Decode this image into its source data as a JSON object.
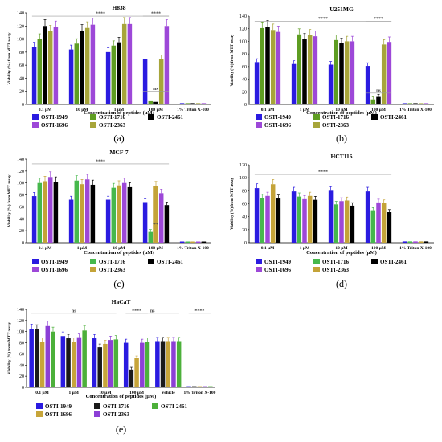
{
  "colors": {
    "OSTI-1949": "#2a1be0",
    "OSTI-1716_a": "#5e9d22",
    "OSTI-2461": "#000000",
    "OSTI-1696": "#9d48d8",
    "OSTI-2363_a": "#a7a53a",
    "OSTI-1716_b": "#46b84c",
    "OSTI-2363_b": "#c4a338",
    "OSTI-1716_e": "#1a1a1a",
    "OSTI-2461_e": "#4cb03a",
    "OSTI-1696_e": "#c7a53a",
    "OSTI-2363_e": "#8c3fd6",
    "grey": "#9a9a9a",
    "red": "#e02020"
  },
  "chart_data": [
    {
      "type": "bar",
      "panel_label": "(a)",
      "title": "H838",
      "xlabel": "Concentration of peptides (µM)",
      "ylabel": "Viability (%) from MTT assay",
      "ylim": [
        0,
        140
      ],
      "yticks": [
        "0",
        "20",
        "40",
        "60",
        "80",
        "100",
        "120",
        "140"
      ],
      "categories": [
        "0.1 µM",
        "10 µM",
        "1 µM",
        "100 µM",
        "1% Triton X-100"
      ],
      "series": [
        {
          "name": "OSTI-1949",
          "color_key": "OSTI-1949",
          "values": [
            88,
            84,
            80,
            70,
            2
          ]
        },
        {
          "name": "OSTI-1716",
          "color_key": "OSTI-1716_a",
          "values": [
            100,
            93,
            90,
            5,
            2
          ]
        },
        {
          "name": "OSTI-2461",
          "color_key": "OSTI-2461",
          "values": [
            120,
            113,
            95,
            4,
            2
          ]
        },
        {
          "name": "OSTI-2363",
          "color_key": "OSTI-2363_a",
          "values": [
            112,
            117,
            123,
            70,
            2
          ]
        },
        {
          "name": "OSTI-1696",
          "color_key": "OSTI-1696",
          "values": [
            118,
            122,
            123,
            120,
            2
          ]
        }
      ],
      "annotations": [
        {
          "text": "****",
          "x_from": 0,
          "x_to": 3,
          "y": 135
        },
        {
          "text": "****",
          "x_from": 3,
          "x_to": 3,
          "y": 135
        },
        {
          "text": "ns",
          "x_from": 3,
          "x_to": 3,
          "y": 20
        }
      ],
      "legend": [
        "OSTI-1949",
        "OSTI-1716",
        "OSTI-2461",
        "OSTI-1696",
        "OSTI-2363"
      ],
      "legend_colors": [
        "OSTI-1949",
        "OSTI-1716_a",
        "OSTI-2461",
        "OSTI-1696",
        "OSTI-2363_a"
      ]
    },
    {
      "type": "bar",
      "panel_label": "(b)",
      "title": "U251MG",
      "xlabel": "Concentration of peptides (µM)",
      "ylabel": "Viability (%) from MTT assay",
      "ylim": [
        0,
        140
      ],
      "yticks": [
        "0",
        "20",
        "40",
        "60",
        "80",
        "100",
        "120",
        "140"
      ],
      "categories": [
        "0.1 µM",
        "1 µM",
        "10 µM",
        "100 µM",
        "1% Triton X-100"
      ],
      "series": [
        {
          "name": "OSTI-1949",
          "color_key": "OSTI-1949",
          "values": [
            67,
            64,
            63,
            61,
            2
          ]
        },
        {
          "name": "OSTI-1716",
          "color_key": "OSTI-1716_a",
          "values": [
            121,
            111,
            102,
            8,
            2
          ]
        },
        {
          "name": "OSTI-2461",
          "color_key": "OSTI-2461",
          "values": [
            123,
            104,
            97,
            12,
            2
          ]
        },
        {
          "name": "OSTI-2363",
          "color_key": "OSTI-2363_a",
          "values": [
            118,
            110,
            100,
            95,
            2
          ]
        },
        {
          "name": "OSTI-1696",
          "color_key": "OSTI-1696",
          "values": [
            115,
            108,
            100,
            99,
            2
          ]
        }
      ],
      "annotations": [
        {
          "text": "****",
          "x_from": 0,
          "x_to": 3,
          "y": 132
        },
        {
          "text": "****",
          "x_from": 3,
          "x_to": 3,
          "y": 132
        },
        {
          "text": "ns",
          "x_from": 3,
          "x_to": 3,
          "y": 18
        }
      ],
      "legend": [
        "OSTI-1949",
        "OSTI-1716",
        "OSTI-2461",
        "OSTI-1696",
        "OSTI-2363"
      ],
      "legend_colors": [
        "OSTI-1949",
        "OSTI-1716_a",
        "OSTI-2461",
        "OSTI-1696",
        "OSTI-2363_a"
      ]
    },
    {
      "type": "bar",
      "panel_label": "(c)",
      "title": "MCF-7",
      "xlabel": "Concentration of peptides (µM)",
      "ylabel": "Viability (%) from MTT assay",
      "ylim": [
        0,
        140
      ],
      "yticks": [
        "0",
        "20",
        "40",
        "60",
        "80",
        "100",
        "120",
        "140"
      ],
      "categories": [
        "0.1 µM",
        "1 µM",
        "10 µM",
        "100 µM",
        "1% Triton X-100"
      ],
      "series": [
        {
          "name": "OSTI-1949",
          "color_key": "OSTI-1949",
          "values": [
            78,
            72,
            72,
            68,
            2
          ]
        },
        {
          "name": "OSTI-1716",
          "color_key": "OSTI-1716_b",
          "values": [
            100,
            104,
            92,
            18,
            2
          ]
        },
        {
          "name": "OSTI-2363",
          "color_key": "OSTI-2363_b",
          "values": [
            103,
            98,
            96,
            95,
            2
          ]
        },
        {
          "name": "OSTI-1696",
          "color_key": "OSTI-1696",
          "values": [
            110,
            106,
            100,
            83,
            2
          ]
        },
        {
          "name": "OSTI-2461",
          "color_key": "OSTI-2461",
          "values": [
            102,
            97,
            93,
            63,
            2
          ]
        }
      ],
      "annotations": [
        {
          "text": "****",
          "x_from": 0,
          "x_to": 3,
          "y": 132
        },
        {
          "text": "**",
          "x_from": 3,
          "x_to": 3,
          "y": 26
        }
      ],
      "legend": [
        "OSTI-1949",
        "OSTI-1716",
        "OSTI-2461",
        "OSTI-1696",
        "OSTI-2363"
      ],
      "legend_colors": [
        "OSTI-1949",
        "OSTI-1716_b",
        "OSTI-2461",
        "OSTI-1696",
        "OSTI-2363_b"
      ]
    },
    {
      "type": "bar",
      "panel_label": "(d)",
      "title": "HCT116",
      "xlabel": "Concentration of peptides (µM)",
      "ylabel": "Viability (%) from MTT assay",
      "ylim": [
        0,
        120
      ],
      "yticks": [
        "0",
        "20",
        "40",
        "60",
        "80",
        "100",
        "120"
      ],
      "categories": [
        "0.1 µM",
        "1 µM",
        "10 µM",
        "100 µM",
        "1% Triton X-100"
      ],
      "series": [
        {
          "name": "OSTI-1949",
          "color_key": "OSTI-1949",
          "values": [
            84,
            79,
            80,
            79,
            2
          ]
        },
        {
          "name": "OSTI-1716",
          "color_key": "OSTI-1716_b",
          "values": [
            69,
            71,
            59,
            50,
            2
          ]
        },
        {
          "name": "OSTI-1696",
          "color_key": "OSTI-1696",
          "values": [
            72,
            67,
            64,
            62,
            2
          ]
        },
        {
          "name": "OSTI-2363",
          "color_key": "OSTI-2363_b",
          "values": [
            90,
            72,
            65,
            61,
            2
          ]
        },
        {
          "name": "OSTI-2461",
          "color_key": "OSTI-2461",
          "values": [
            68,
            66,
            57,
            47,
            2
          ]
        }
      ],
      "annotations": [
        {
          "text": "****",
          "x_from": 0,
          "x_to": 3,
          "y": 105
        }
      ],
      "legend": [
        "OSTI-1949",
        "OSTI-1716",
        "OSTI-2461",
        "OSTI-1696",
        "OSTI-2363"
      ],
      "legend_colors": [
        "OSTI-1949",
        "OSTI-1716_b",
        "OSTI-2461",
        "OSTI-1696",
        "OSTI-2363_b"
      ]
    },
    {
      "type": "bar",
      "panel_label": "(e)",
      "title": "HaCaT",
      "xlabel": "Concentration of peptides (µM)",
      "ylabel": "Viability (%) from MTT assay",
      "ylim": [
        0,
        140
      ],
      "yticks": [
        "0",
        "20",
        "40",
        "60",
        "80",
        "100",
        "120",
        "140"
      ],
      "categories": [
        "0.1 µM",
        "1 µM",
        "10 µM",
        "100 µM",
        "Vehicle",
        "1% Triton X-100"
      ],
      "series": [
        {
          "name": "OSTI-1949",
          "color_key": "OSTI-1949",
          "values": [
            105,
            92,
            88,
            80,
            83,
            2
          ]
        },
        {
          "name": "OSTI-1716",
          "color_key": "OSTI-1716_e",
          "values": [
            104,
            88,
            72,
            32,
            83,
            2
          ]
        },
        {
          "name": "OSTI-1696",
          "color_key": "OSTI-1696_e",
          "values": [
            82,
            82,
            78,
            52,
            83,
            2
          ]
        },
        {
          "name": "OSTI-2363",
          "color_key": "OSTI-2363_e",
          "values": [
            110,
            90,
            85,
            80,
            83,
            2
          ]
        },
        {
          "name": "OSTI-2461",
          "color_key": "OSTI-2461_e",
          "values": [
            100,
            102,
            86,
            82,
            83,
            2
          ]
        }
      ],
      "annotations": [
        {
          "text": "ns",
          "x_from": 0,
          "x_to": 2,
          "y": 133
        },
        {
          "text": "****",
          "x_from": 3,
          "x_to": 3,
          "y": 133
        },
        {
          "text": "ns",
          "x_from": 3,
          "x_to": 4,
          "y": 133
        },
        {
          "text": "****",
          "x_from": 5,
          "x_to": 5,
          "y": 133
        }
      ],
      "legend": [
        "OSTI-1949",
        "OSTI-1716",
        "OSTI-2461",
        "OSTI-1696",
        "OSTI-2363"
      ],
      "legend_colors": [
        "OSTI-1949",
        "OSTI-1716_e",
        "OSTI-2461_e",
        "OSTI-1696_e",
        "OSTI-2363_e"
      ]
    }
  ]
}
